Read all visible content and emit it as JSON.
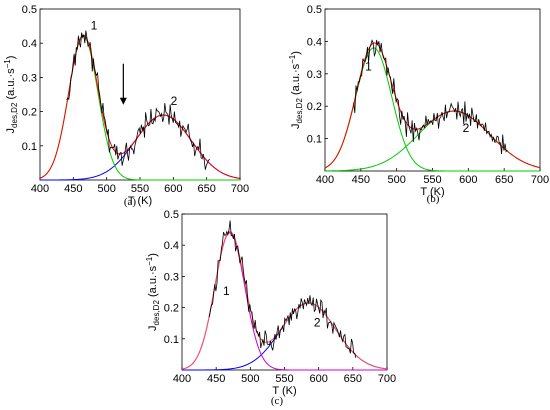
{
  "chart_data": [
    {
      "type": "line",
      "panel_label": "(a)",
      "xlabel": "T (K)",
      "ylabel_main": "J",
      "ylabel_sub": "des,D2",
      "ylabel_unit": " (a.u.·s",
      "ylabel_exp": "−1",
      "ylabel_close": ")",
      "xlim": [
        400,
        700
      ],
      "ylim": [
        0,
        0.5
      ],
      "xticks": [
        400,
        450,
        500,
        550,
        600,
        650,
        700
      ],
      "yticks": [
        0.1,
        0.2,
        0.3,
        0.4,
        0.5
      ],
      "ytick_labels": [
        "0.1",
        "0.2",
        "0.3",
        "0.4",
        "0.5"
      ],
      "colors": {
        "experimental": "#000000",
        "total_fit": "#ff0000",
        "peak1": "#00cc00",
        "peak2": "#0000ff"
      },
      "peak1": {
        "label": "1",
        "center": 465,
        "width": 22,
        "amplitude": 0.42,
        "label_at": [
          476,
          0.44
        ]
      },
      "peak2": {
        "label": "2",
        "center": 585,
        "width": 42,
        "amplitude": 0.19,
        "label_at": [
          596,
          0.22
        ]
      },
      "noise": 0.022,
      "experimental_range": [
        440,
        655
      ],
      "arrow": {
        "x": 525,
        "y_from": 0.34,
        "y_to": 0.22
      },
      "baseline_color": "#0000ff"
    },
    {
      "type": "line",
      "panel_label": "(b)",
      "xlabel": "T (K)",
      "ylabel_main": "J",
      "ylabel_sub": "des,D2",
      "ylabel_unit": " (a.u.·s",
      "ylabel_exp": "−1",
      "ylabel_close": ")",
      "xlim": [
        400,
        700
      ],
      "ylim": [
        0,
        0.5
      ],
      "xticks": [
        400,
        450,
        500,
        550,
        600,
        650,
        700
      ],
      "yticks": [
        0.1,
        0.2,
        0.3,
        0.4,
        0.5
      ],
      "ytick_labels": [
        "0.1",
        "0.2",
        "0.3",
        "0.4",
        "0.5"
      ],
      "colors": {
        "experimental": "#000000",
        "total_fit": "#ff0000",
        "peak1": "#00cc00",
        "peak2": "#00cc00"
      },
      "peak1": {
        "label": "1",
        "center": 468,
        "width": 25,
        "amplitude": 0.38,
        "label_at": [
          456,
          0.31
        ]
      },
      "peak2": {
        "label": "2",
        "center": 580,
        "width": 50,
        "amplitude": 0.185,
        "label_at": [
          592,
          0.12
        ]
      },
      "noise": 0.022,
      "experimental_range": [
        440,
        655
      ],
      "arrow": null,
      "baseline_color": "#00cc00"
    },
    {
      "type": "line",
      "panel_label": "(c)",
      "xlabel": "T (K)",
      "ylabel_main": "J",
      "ylabel_sub": "des,D2",
      "ylabel_unit": " (a.u.·s",
      "ylabel_exp": "−1",
      "ylabel_close": ")",
      "xlim": [
        400,
        700
      ],
      "ylim": [
        0,
        0.5
      ],
      "xticks": [
        400,
        450,
        500,
        550,
        600,
        650,
        700
      ],
      "yticks": [
        0.1,
        0.2,
        0.3,
        0.4,
        0.5
      ],
      "ytick_labels": [
        "0.1",
        "0.2",
        "0.3",
        "0.4",
        "0.5"
      ],
      "colors": {
        "experimental": "#000000",
        "total_fit": "#ff5555",
        "peak1": "#cc00cc",
        "peak2": "#0000ff"
      },
      "peak1": {
        "label": "1",
        "center": 470,
        "width": 22,
        "amplitude": 0.44,
        "label_at": [
          460,
          0.24
        ]
      },
      "peak2": {
        "label": "2",
        "center": 585,
        "width": 40,
        "amplitude": 0.215,
        "label_at": [
          593,
          0.14
        ]
      },
      "noise": 0.022,
      "experimental_range": [
        440,
        655
      ],
      "arrow": null,
      "baseline_color": "#0000ff"
    }
  ]
}
